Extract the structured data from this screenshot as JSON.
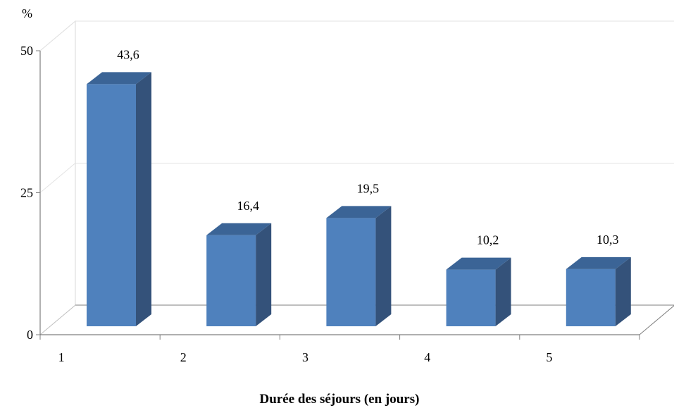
{
  "chart_data": {
    "type": "bar",
    "categories": [
      "1",
      "2",
      "3",
      "4",
      "5"
    ],
    "values": [
      43.6,
      16.4,
      19.5,
      10.2,
      10.3
    ],
    "value_labels": [
      "43,6",
      "16,4",
      "19,5",
      "10,2",
      "10,3"
    ],
    "ylim": [
      0,
      50
    ],
    "yticks": [
      0,
      25,
      50
    ],
    "ytick_labels": [
      "0",
      "25",
      "50"
    ],
    "y_unit": "%",
    "xlabel": "Durée des séjours (en jours)",
    "grid": true,
    "style": "3d",
    "colors": {
      "bar_front": "#4f81bd",
      "bar_side": "#34527a",
      "bar_top": "#3b6496"
    }
  }
}
